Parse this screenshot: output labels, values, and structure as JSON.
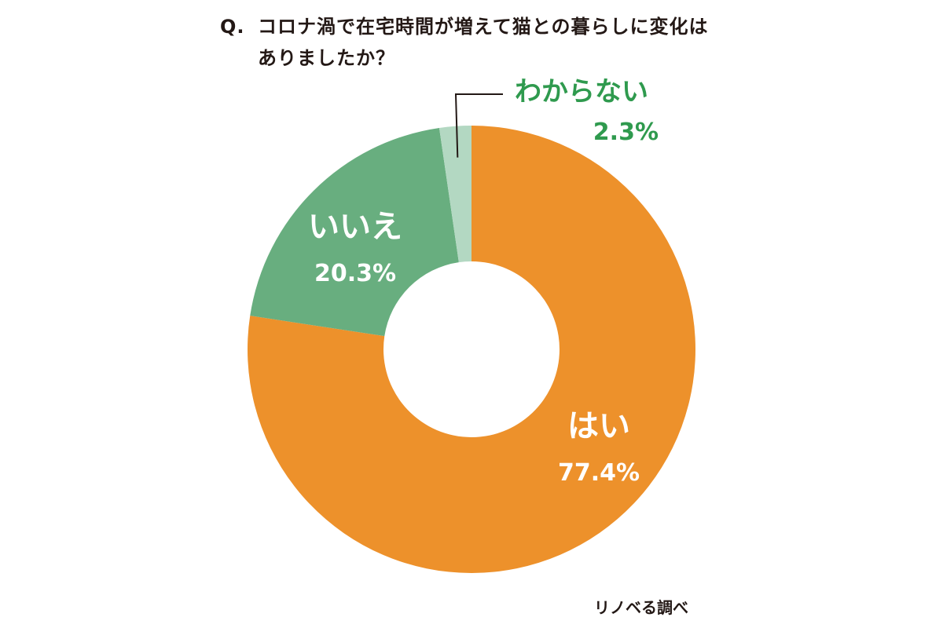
{
  "question": {
    "prefix": "Q.",
    "line1": "コロナ渦で在宅時間が増えて猫との暮らしに変化は",
    "line2": "ありましたか？"
  },
  "source": "リノベる調べ",
  "chart_data": {
    "type": "pie",
    "subtype": "donut",
    "title": "Q. コロナ渦で在宅時間が増えて猫との暮らしに変化はありましたか？",
    "start": "top",
    "direction": "clockwise",
    "slices": [
      {
        "label": "はい",
        "value": 77.4,
        "value_label": "77.4%",
        "color": "#ED912B",
        "label_color": "#ffffff"
      },
      {
        "label": "いいえ",
        "value": 20.3,
        "value_label": "20.3%",
        "color": "#68AE7F",
        "label_color": "#ffffff"
      },
      {
        "label": "わからない",
        "value": 2.3,
        "value_label": "2.3%",
        "color": "#B3D8C2",
        "label_color": "#2F9A4E"
      }
    ]
  }
}
